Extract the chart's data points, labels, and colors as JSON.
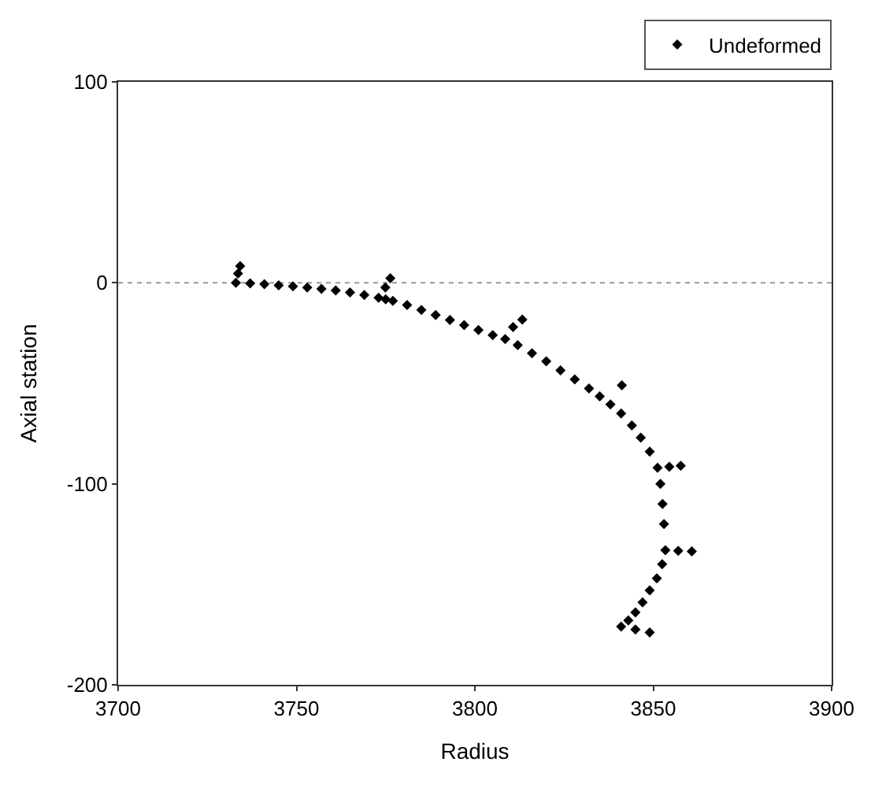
{
  "chart_data": {
    "type": "scatter",
    "xlabel": "Radius",
    "ylabel": "Axial station",
    "xlim": [
      3700,
      3900
    ],
    "xticks": [
      3700,
      3750,
      3800,
      3850,
      3900
    ],
    "ylim": [
      -200,
      100
    ],
    "yticks": [
      -200,
      -100,
      0,
      100
    ],
    "grid": false,
    "legend": "top right",
    "marker": "diamond",
    "ref_lines": [
      {
        "axis": "y",
        "value": 0,
        "label": null,
        "color": "#999999",
        "line_style": "dotted"
      }
    ],
    "series": [
      {
        "name": "Undeformed",
        "color": "#000000",
        "x": [
          3734.2,
          3733.6,
          3733,
          3737,
          3741,
          3745,
          3749,
          3753,
          3757,
          3761,
          3765,
          3769,
          3773,
          3775,
          3774.9,
          3776.3,
          3777,
          3781,
          3785,
          3789,
          3793,
          3797,
          3801,
          3805,
          3808.5,
          3810.7,
          3813.3,
          3812,
          3816,
          3820,
          3824,
          3828,
          3832,
          3835,
          3838,
          3841.2,
          3841,
          3844,
          3846.5,
          3849,
          3851.2,
          3854.5,
          3857.7,
          3852,
          3852.6,
          3853,
          3853.4,
          3857,
          3860.8,
          3852.5,
          3851,
          3849,
          3847,
          3845,
          3843,
          3841,
          3845,
          3849
        ],
        "values": [
          8.4,
          4.6,
          0,
          -0.3,
          -0.7,
          -1.2,
          -1.7,
          -2.3,
          -3,
          -3.8,
          -4.8,
          -6,
          -7.4,
          -8.2,
          -2.3,
          2.3,
          -9,
          -11,
          -13.5,
          -16,
          -18.5,
          -21,
          -23.5,
          -26,
          -28,
          -22,
          -18.3,
          -31,
          -35,
          -39,
          -43.5,
          -48,
          -52.5,
          -56.5,
          -60.5,
          -51,
          -65,
          -71,
          -77,
          -84,
          -92,
          -91.5,
          -91,
          -100,
          -110,
          -120,
          -133,
          -133.3,
          -133.6,
          -140,
          -147,
          -153,
          -159,
          -164,
          -168,
          -171,
          -172.5,
          -174
        ]
      }
    ]
  }
}
